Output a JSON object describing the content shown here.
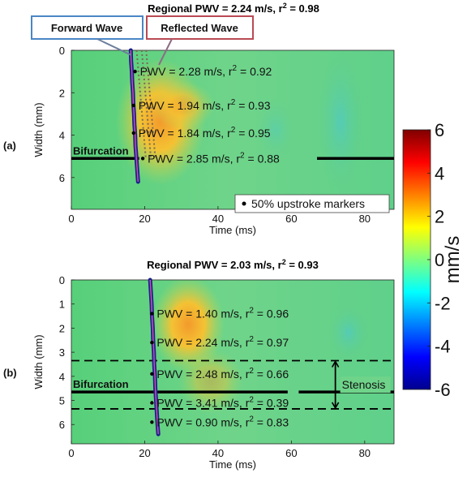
{
  "colorbar": {
    "label": "mm/s",
    "min": -6,
    "max": 6,
    "ticks": [
      "6",
      "4",
      "2",
      "0",
      "-2",
      "-4",
      "-6"
    ]
  },
  "chart_data": [
    {
      "type": "heatmap",
      "panel_label": "(a)",
      "title": "Regional PWV = 2.24 m/s, r",
      "title_sup": "2",
      "title_tail": " = 0.98",
      "xlabel": "Time (ms)",
      "ylabel": "Width (mm)",
      "xlim": [
        0,
        88
      ],
      "ylim": [
        0,
        7.5
      ],
      "xticks": [
        "0",
        "20",
        "40",
        "60",
        "80"
      ],
      "yticks": [
        "0",
        "2",
        "4",
        "6"
      ],
      "callouts": {
        "forward": "Forward Wave",
        "reflected": "Reflected Wave"
      },
      "bifurcation_label": "Bifurcation",
      "bifurcation_width_mm": 5.1,
      "legend": "50% upstroke markers",
      "annotations": [
        {
          "text": "PWV = 2.28 m/s, r",
          "sup": "2",
          "tail": " = 0.92",
          "width_mm": 1.0
        },
        {
          "text": "PWV = 1.94 m/s, r",
          "sup": "2",
          "tail": " = 0.93",
          "width_mm": 2.6
        },
        {
          "text": "PWV = 1.84 m/s, r",
          "sup": "2",
          "tail": " = 0.95",
          "width_mm": 3.9
        },
        {
          "text": "PWV = 2.85 m/s, r",
          "sup": "2",
          "tail": " = 0.88",
          "width_mm": 5.1
        }
      ],
      "upstroke_times_ms": [
        [
          0.0,
          16.2
        ],
        [
          0.5,
          16.3
        ],
        [
          1.0,
          16.5
        ],
        [
          1.5,
          16.6
        ],
        [
          2.0,
          16.8
        ],
        [
          2.5,
          16.9
        ],
        [
          3.0,
          17.1
        ],
        [
          3.5,
          17.2
        ],
        [
          4.0,
          17.4
        ],
        [
          4.5,
          17.5
        ],
        [
          5.0,
          17.7
        ],
        [
          5.5,
          17.9
        ],
        [
          6.0,
          18.1
        ],
        [
          6.2,
          18.2
        ]
      ]
    },
    {
      "type": "heatmap",
      "panel_label": "(b)",
      "title": "Regional PWV = 2.03 m/s, r",
      "title_sup": "2",
      "title_tail": " = 0.93",
      "xlabel": "Time (ms)",
      "ylabel": "Width (mm)",
      "xlim": [
        0,
        88
      ],
      "ylim": [
        0,
        6.8
      ],
      "xticks": [
        "0",
        "20",
        "40",
        "60",
        "80"
      ],
      "yticks": [
        "0",
        "1",
        "2",
        "3",
        "4",
        "5",
        "6"
      ],
      "bifurcation_label": "Bifurcation",
      "bifurcation_width_mm": 4.65,
      "stenosis_label": "Stenosis",
      "stenosis_range_mm": [
        3.35,
        5.35
      ],
      "annotations": [
        {
          "text": "PWV = 1.40 m/s, r",
          "sup": "2",
          "tail": " = 0.96",
          "width_mm": 1.4
        },
        {
          "text": "PWV = 2.24 m/s, r",
          "sup": "2",
          "tail": " = 0.97",
          "width_mm": 2.6
        },
        {
          "text": "PWV = 2.48 m/s, r",
          "sup": "2",
          "tail": " = 0.66",
          "width_mm": 3.9
        },
        {
          "text": "PWV = 3.41 m/s, r",
          "sup": "2",
          "tail": " = 0.39",
          "width_mm": 5.1
        },
        {
          "text": "PWV = 0.90 m/s, r",
          "sup": "2",
          "tail": " = 0.83",
          "width_mm": 5.9
        }
      ],
      "upstroke_times_ms": [
        [
          0.0,
          21.5
        ],
        [
          0.5,
          21.7
        ],
        [
          1.0,
          21.9
        ],
        [
          1.5,
          22.0
        ],
        [
          2.0,
          22.2
        ],
        [
          2.5,
          22.3
        ],
        [
          3.0,
          22.5
        ],
        [
          3.5,
          22.6
        ],
        [
          4.0,
          22.8
        ],
        [
          4.5,
          22.9
        ],
        [
          5.0,
          23.1
        ],
        [
          5.5,
          23.3
        ],
        [
          6.0,
          23.5
        ],
        [
          6.4,
          23.7
        ]
      ]
    }
  ]
}
